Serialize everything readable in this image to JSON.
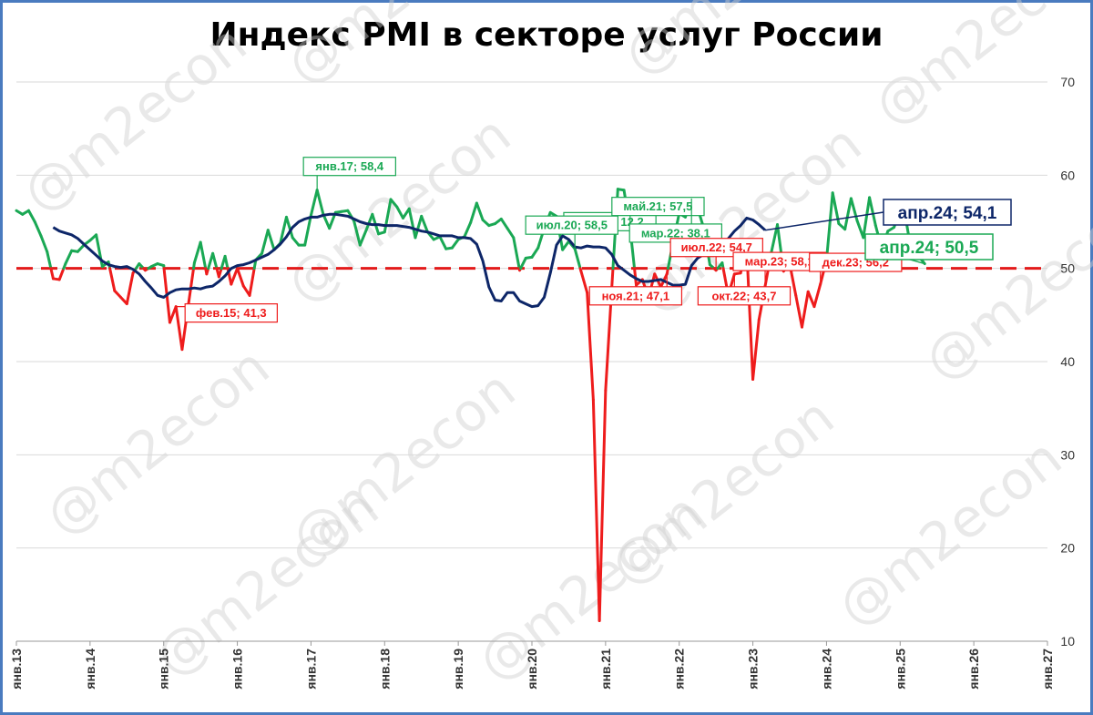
{
  "title": "Индекс PMI в секторе услуг России",
  "watermark": "@m2econ",
  "colors": {
    "above": "#1aa854",
    "below": "#ee1c1c",
    "trend": "#0d2668",
    "threshold": "#e31a1a",
    "grid": "#d9d9d9",
    "frame": "#4a7bbf"
  },
  "chart_data": {
    "type": "line",
    "title": "Индекс PMI в секторе услуг России",
    "x_start": "2013-01",
    "x_end": "2027-01",
    "ylim": [
      10,
      70
    ],
    "y_ticks": [
      10,
      20,
      30,
      40,
      50,
      60,
      70
    ],
    "y_axis_side": "right",
    "x_tick_labels": [
      "янв.13",
      "янв.14",
      "янв.15",
      "янв.16",
      "янв.17",
      "янв.18",
      "янв.19",
      "янв.20",
      "янв.21",
      "янв.22",
      "янв.23",
      "янв.24",
      "янв.25",
      "янв.26",
      "янв.27"
    ],
    "grid": true,
    "threshold": 50,
    "series": [
      {
        "role": "monthly",
        "start": "2013-01",
        "values": [
          56.2,
          55.8,
          56.2,
          55.0,
          53.5,
          51.8,
          48.9,
          48.8,
          50.5,
          51.9,
          51.8,
          52.5,
          53.0,
          53.6,
          50.2,
          50.7,
          47.6,
          46.9,
          46.2,
          49.5,
          50.5,
          49.8,
          50.2,
          50.5,
          50.3,
          44.2,
          45.9,
          41.3,
          46.0,
          50.6,
          52.8,
          49.4,
          51.6,
          49.1,
          51.3,
          48.3,
          50.0,
          48.1,
          47.1,
          50.9,
          51.6,
          54.1,
          52.0,
          52.7,
          55.5,
          53.3,
          52.5,
          52.5,
          55.7,
          58.4,
          55.8,
          54.3,
          56.0,
          56.1,
          56.2,
          55.1,
          52.5,
          54.1,
          55.8,
          53.7,
          53.9,
          57.4,
          56.6,
          55.4,
          56.4,
          53.3,
          55.6,
          53.9,
          53.1,
          53.4,
          52.1,
          52.2,
          53.1,
          53.4,
          54.9,
          57.0,
          55.2,
          54.6,
          54.8,
          55.3,
          54.3,
          53.3,
          49.8,
          51.1,
          51.2,
          52.2,
          54.3,
          56.0,
          55.6,
          52.0,
          52.9,
          52.1,
          49.7,
          47.4,
          35.9,
          12.2,
          36.9,
          47.8,
          58.5,
          58.4,
          54.3,
          48.2,
          48.8,
          46.9,
          49.4,
          48.0,
          49.4,
          52.8,
          55.9,
          55.5,
          57.5,
          56.5,
          54.3,
          50.4,
          49.8,
          50.6,
          47.1,
          49.4,
          49.5,
          52.1,
          38.1,
          44.5,
          48.1,
          51.7,
          54.7,
          49.7,
          50.5,
          47.1,
          43.7,
          47.5,
          45.9,
          48.3,
          50.9,
          58.1,
          54.8,
          54.2,
          57.5,
          55.1,
          53.3,
          57.6,
          54.6,
          52.1,
          54.0,
          54.4,
          56.2,
          55.0,
          51.1,
          51.3,
          50.5
        ],
        "labels": [
          {
            "text": "фев.15; 41,3",
            "at": "2015-03"
          },
          {
            "text": "янв.17; 58,4",
            "at": "2017-02"
          },
          {
            "text": "апр.20; 12,2",
            "at": "2020-05"
          },
          {
            "text": "июл.20; 58,5",
            "at": "2020-08"
          },
          {
            "text": "ноя.21; 47,1",
            "at": "2021-11"
          },
          {
            "text": "май.21; 57,5",
            "at": "2021-05"
          },
          {
            "text": "мар.22; 38,1",
            "at": "2022-03"
          },
          {
            "text": "июл.22; 54,7",
            "at": "2022-07"
          },
          {
            "text": "окт.22; 43,7",
            "at": "2022-10"
          },
          {
            "text": "мар.23; 58,1",
            "at": "2023-03"
          },
          {
            "text": "дек.23; 56,2",
            "at": "2023-12"
          },
          {
            "text": "апр.24; 50,5",
            "at": "2024-04"
          }
        ]
      },
      {
        "role": "trend",
        "start": "2013-07",
        "values": [
          54.4,
          54.0,
          53.8,
          53.6,
          53.2,
          52.6,
          52.0,
          51.4,
          50.8,
          50.4,
          50.2,
          50.1,
          50.2,
          49.9,
          49.4,
          48.6,
          47.9,
          47.1,
          46.9,
          47.4,
          47.7,
          47.8,
          47.8,
          47.9,
          47.8,
          48.0,
          48.1,
          48.6,
          49.2,
          50.0,
          50.3,
          50.4,
          50.6,
          50.9,
          51.2,
          51.5,
          52.0,
          52.6,
          53.4,
          54.4,
          55.0,
          55.3,
          55.5,
          55.5,
          55.7,
          55.8,
          55.8,
          55.7,
          55.6,
          55.3,
          55.0,
          54.8,
          54.7,
          54.7,
          54.6,
          54.6,
          54.6,
          54.5,
          54.4,
          54.2,
          54.0,
          53.9,
          53.7,
          53.5,
          53.5,
          53.5,
          53.3,
          53.3,
          53.2,
          52.6,
          50.8,
          48.0,
          46.6,
          46.5,
          47.4,
          47.4,
          46.5,
          46.2,
          45.9,
          46.0,
          46.9,
          49.5,
          52.5,
          53.5,
          53.1,
          52.3,
          52.2,
          52.4,
          52.3,
          52.3,
          52.2,
          51.5,
          50.3,
          49.8,
          49.3,
          48.9,
          48.6,
          48.6,
          48.7,
          48.8,
          48.5,
          48.2,
          48.2,
          48.3,
          50.3,
          51.1,
          51.5,
          51.8,
          51.7,
          52.5,
          53.2,
          54.0,
          54.6,
          55.4,
          55.2,
          54.7,
          54.1
        ]
      }
    ],
    "end_labels": [
      {
        "text": "апр.24; 54,1",
        "series": "trend"
      },
      {
        "text": "апр.24; 50,5",
        "series": "monthly"
      }
    ]
  }
}
